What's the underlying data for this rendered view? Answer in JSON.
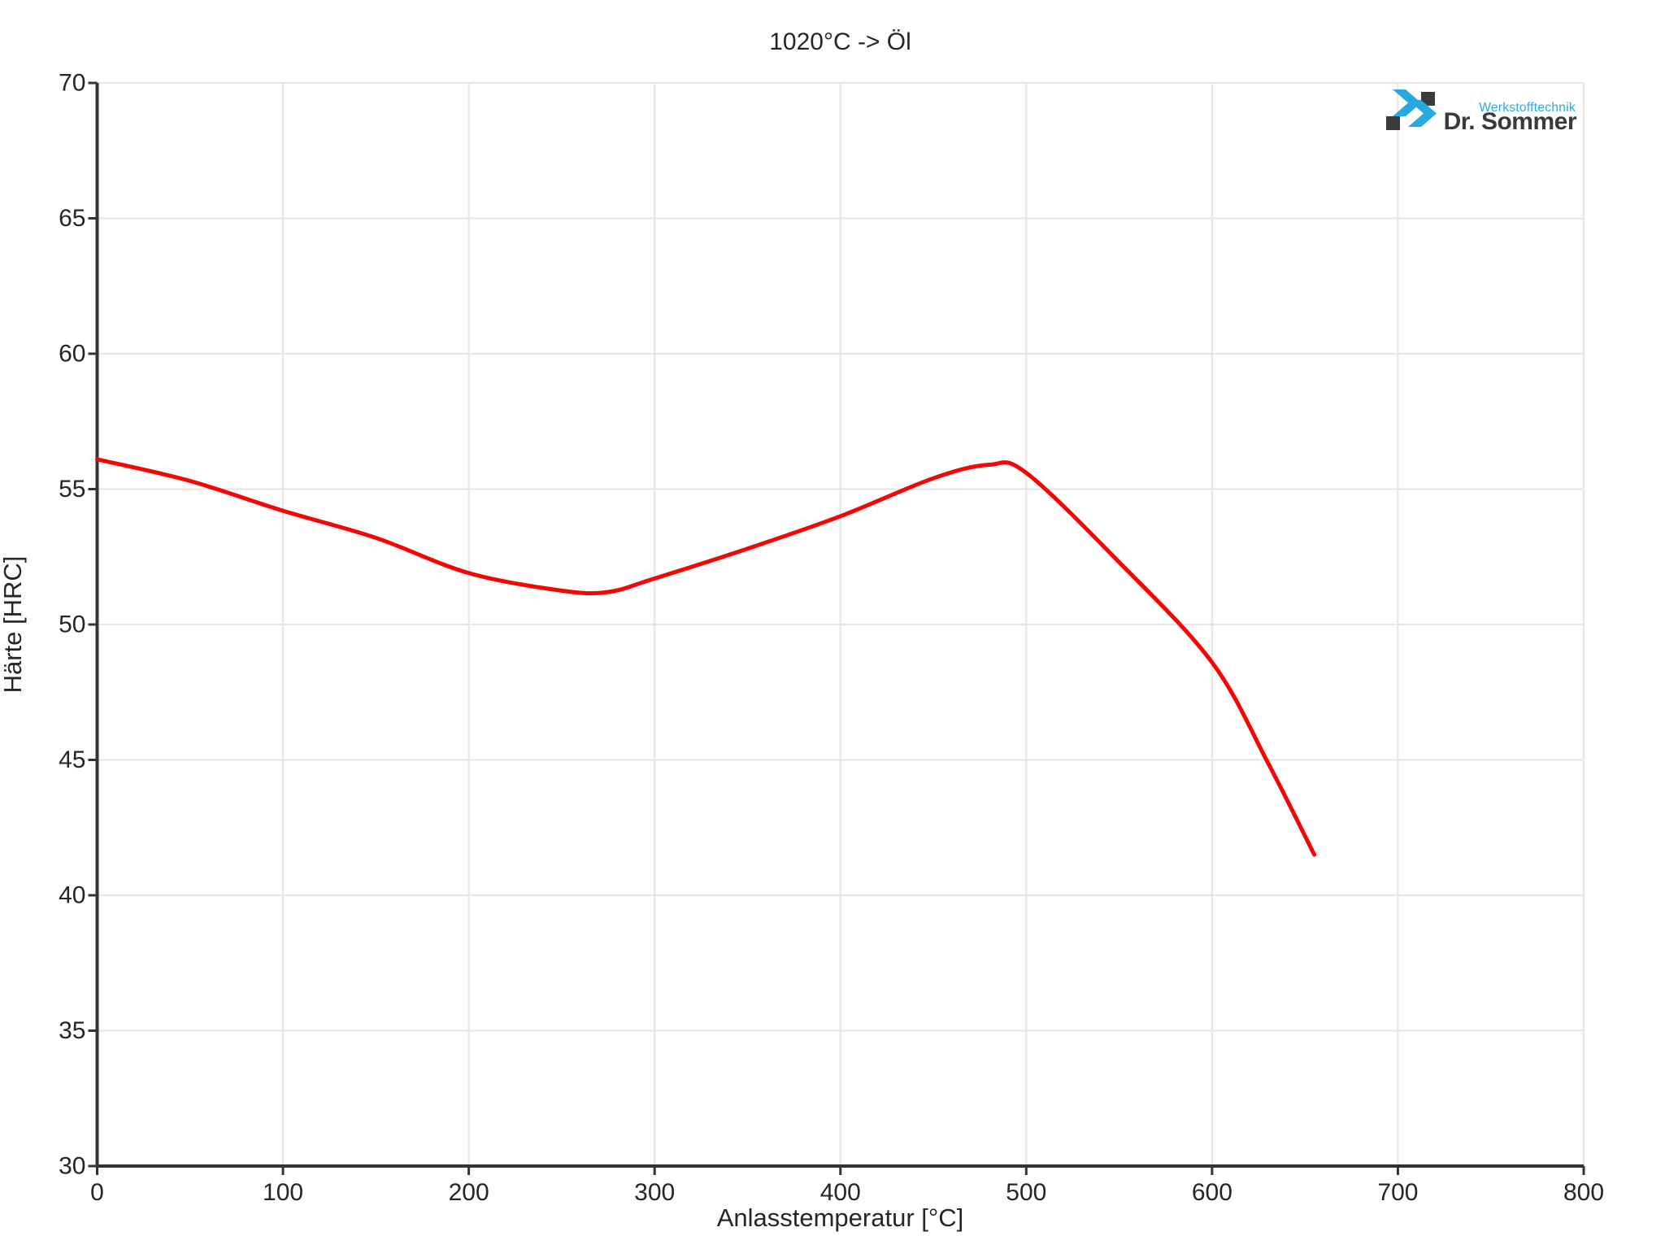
{
  "chart": {
    "background": "#ffffff"
  },
  "chart_data": {
    "type": "line",
    "title": "1020°C -> Öl",
    "xlabel": "Anlasstemperatur [°C]",
    "ylabel": "Härte [HRC]",
    "xlim": [
      0,
      800
    ],
    "ylim": [
      30,
      70
    ],
    "x_ticks": [
      0,
      100,
      200,
      300,
      400,
      500,
      600,
      700,
      800
    ],
    "y_ticks": [
      30,
      35,
      40,
      45,
      50,
      55,
      60,
      65,
      70
    ],
    "grid": true,
    "legend_position": "none",
    "series": [
      {
        "name": "1020°C -> Öl",
        "color": "#f60505",
        "x": [
          0,
          50,
          100,
          150,
          200,
          250,
          275,
          300,
          350,
          400,
          450,
          480,
          500,
          550,
          600,
          630,
          655
        ],
        "y": [
          56.1,
          55.3,
          54.2,
          53.2,
          51.9,
          51.25,
          51.2,
          51.7,
          52.8,
          54.0,
          55.4,
          55.9,
          55.6,
          52.3,
          48.6,
          44.9,
          41.5
        ]
      }
    ],
    "styles": {
      "grid_color": "#e6e6e6",
      "axis_color": "#333333",
      "text_color": "#262626",
      "tick_font_size": 30,
      "line_width": 5
    }
  },
  "logo": {
    "brand": "Dr. Sommer",
    "tagline": "Werkstofftechnik",
    "blue": "#29a9e1",
    "dark": "#3a3a3a"
  }
}
